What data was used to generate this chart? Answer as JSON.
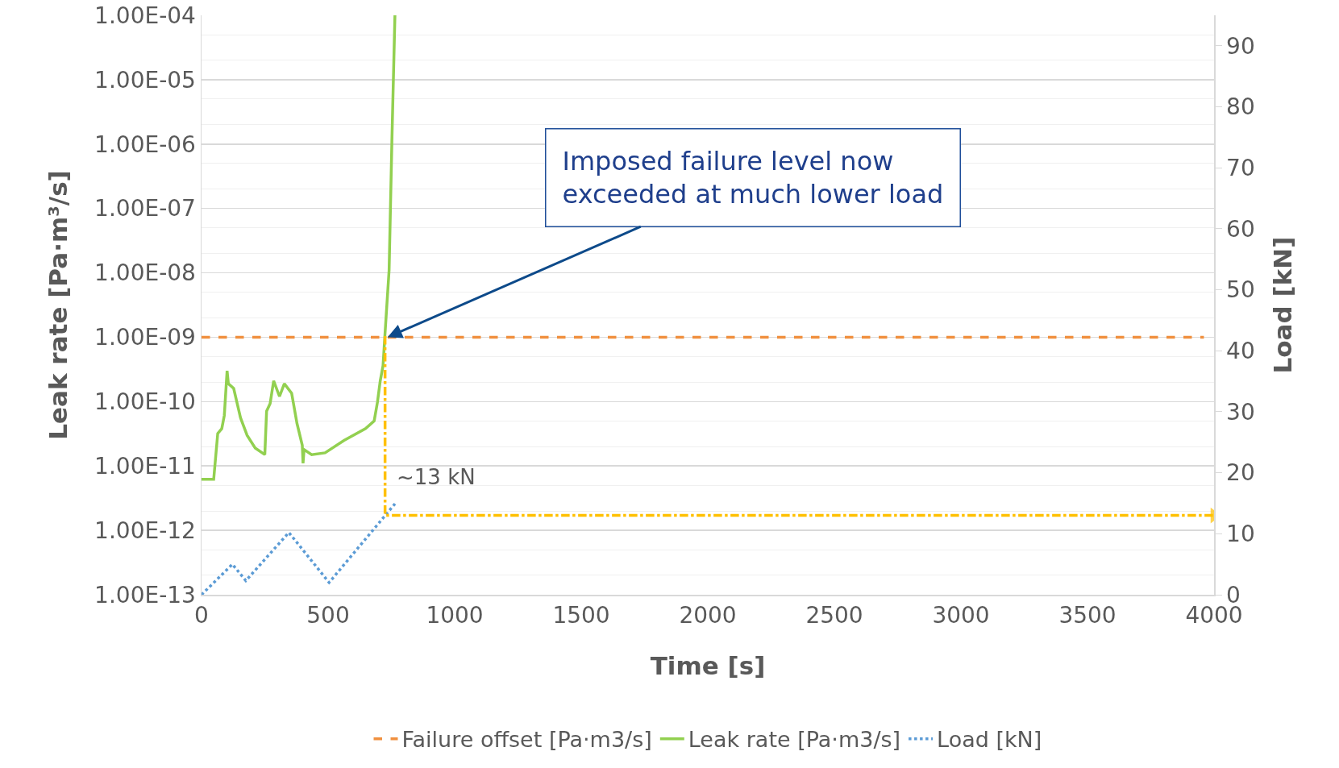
{
  "chart_data": {
    "type": "line",
    "xlabel": "Time [s]",
    "ylabel": "Leak rate [Pa·m³/s]",
    "y2label": "Load [kN]",
    "xlim": [
      0,
      4000
    ],
    "xticks": [
      0,
      500,
      1000,
      1500,
      2000,
      2500,
      3000,
      3500,
      4000
    ],
    "ylim": [
      1e-13,
      0.0001
    ],
    "yticks": [
      {
        "value": 1e-13,
        "label": "1.00E-13"
      },
      {
        "value": 1e-12,
        "label": "1.00E-12"
      },
      {
        "value": 1e-11,
        "label": "1.00E-11"
      },
      {
        "value": 1e-10,
        "label": "1.00E-10"
      },
      {
        "value": 1e-09,
        "label": "1.00E-09"
      },
      {
        "value": 1e-08,
        "label": "1.00E-08"
      },
      {
        "value": 1e-07,
        "label": "1.00E-07"
      },
      {
        "value": 1e-06,
        "label": "1.00E-06"
      },
      {
        "value": 1e-05,
        "label": "1.00E-05"
      },
      {
        "value": 0.0001,
        "label": "1.00E-04"
      }
    ],
    "y2lim": [
      0,
      95
    ],
    "y2ticks": [
      0,
      10,
      20,
      30,
      40,
      50,
      60,
      70,
      80,
      90
    ],
    "log": "y",
    "grid": "y",
    "legend": "bottom",
    "marker": "none",
    "series": [
      {
        "name": "Failure offset [Pa·m3/s]",
        "color": "#f0903f",
        "line_style": "dashed",
        "x": [
          0,
          3960
        ],
        "values": [
          1e-09,
          1e-09
        ]
      },
      {
        "name": "Leak rate [Pa·m3/s]",
        "color": "#92d050",
        "line_style": "solid",
        "x": [
          0,
          48,
          64,
          80,
          90,
          101,
          106,
          127,
          154,
          180,
          212,
          250,
          257,
          271,
          285,
          308,
          327,
          356,
          377,
          398,
          401,
          405,
          435,
          488,
          563,
          648,
          682,
          695,
          706,
          717,
          724,
          741,
          752,
          764
        ],
        "values": [
          6.2e-12,
          6.2e-12,
          3.2e-11,
          3.8e-11,
          6.1e-11,
          3e-10,
          1.9e-10,
          1.6e-10,
          5.6e-11,
          3e-11,
          1.9e-11,
          1.5e-11,
          7.1e-11,
          9.3e-11,
          2.1e-10,
          1.2e-10,
          1.9e-10,
          1.35e-10,
          4.6e-11,
          2.1e-11,
          1.1e-11,
          1.8e-11,
          1.5e-11,
          1.6e-11,
          2.5e-11,
          3.8e-11,
          5e-11,
          9.8e-11,
          2.1e-10,
          3.6e-10,
          1e-09,
          1.1e-08,
          1.1e-06,
          0.0001
        ]
      },
      {
        "name": "Load [kN]",
        "color": "#5b9bd5",
        "line_style": "dotted",
        "axis": "y2",
        "x": [
          0,
          122,
          175,
          345,
          504,
          770
        ],
        "values": [
          0,
          5,
          2.3,
          10.2,
          2,
          15.2
        ]
      },
      {
        "color": "#ffc000",
        "line_style": "dashdot",
        "axis": "y2",
        "x": [
          725,
          725,
          4000
        ],
        "values": [
          42.4,
          13,
          13
        ]
      }
    ],
    "annotations": [
      {
        "text": "Imposed failure level now\nexceeded at much lower load",
        "x": 735,
        "y": 1e-09
      },
      "~13 kN"
    ]
  }
}
